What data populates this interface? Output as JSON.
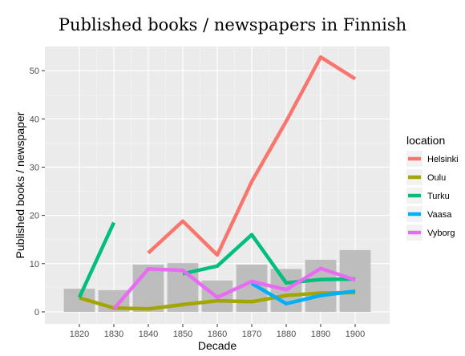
{
  "chart_data": {
    "type": "line",
    "title": "Published books / newspapers in Finnish",
    "xlabel": "Decade",
    "ylabel": "Published books / newspaper",
    "x": [
      1820,
      1830,
      1840,
      1850,
      1860,
      1870,
      1880,
      1890,
      1900
    ],
    "x_tick_labels": [
      "1820",
      "1830",
      "1840",
      "1850",
      "1860",
      "1870",
      "1880",
      "1890",
      "1900"
    ],
    "xlim": [
      1810,
      1910
    ],
    "ylim": [
      -2.5,
      55
    ],
    "y_ticks": [
      0,
      10,
      20,
      30,
      40,
      50
    ],
    "y_tick_labels": [
      "0",
      "10",
      "20",
      "30",
      "40",
      "50"
    ],
    "grid": true,
    "background": "#ebebeb",
    "bars": {
      "color": "#bdbdbd",
      "values": [
        4.8,
        4.5,
        9.8,
        10.1,
        6.5,
        9.8,
        8.9,
        10.8,
        12.8
      ]
    },
    "series": [
      {
        "name": "Helsinki",
        "color": "#f8766d",
        "values": [
          null,
          null,
          12.2,
          18.8,
          11.8,
          27.0,
          39.5,
          52.8,
          48.3
        ]
      },
      {
        "name": "Oulu",
        "color": "#a3a500",
        "values": [
          2.9,
          0.8,
          0.6,
          1.5,
          2.3,
          2.1,
          3.4,
          3.9,
          4.0
        ]
      },
      {
        "name": "Turku",
        "color": "#00bf7d",
        "values": [
          3.0,
          18.5,
          null,
          7.9,
          9.5,
          16.0,
          6.0,
          6.7,
          6.8
        ]
      },
      {
        "name": "Vaasa",
        "color": "#00b0f6",
        "values": [
          null,
          null,
          null,
          null,
          null,
          5.9,
          1.7,
          3.4,
          4.3
        ]
      },
      {
        "name": "Vyborg",
        "color": "#e76bf3",
        "values": [
          null,
          0.6,
          8.9,
          8.6,
          3.0,
          6.3,
          4.6,
          9.0,
          6.6
        ]
      }
    ],
    "legend": {
      "title": "location",
      "position": "right"
    }
  }
}
